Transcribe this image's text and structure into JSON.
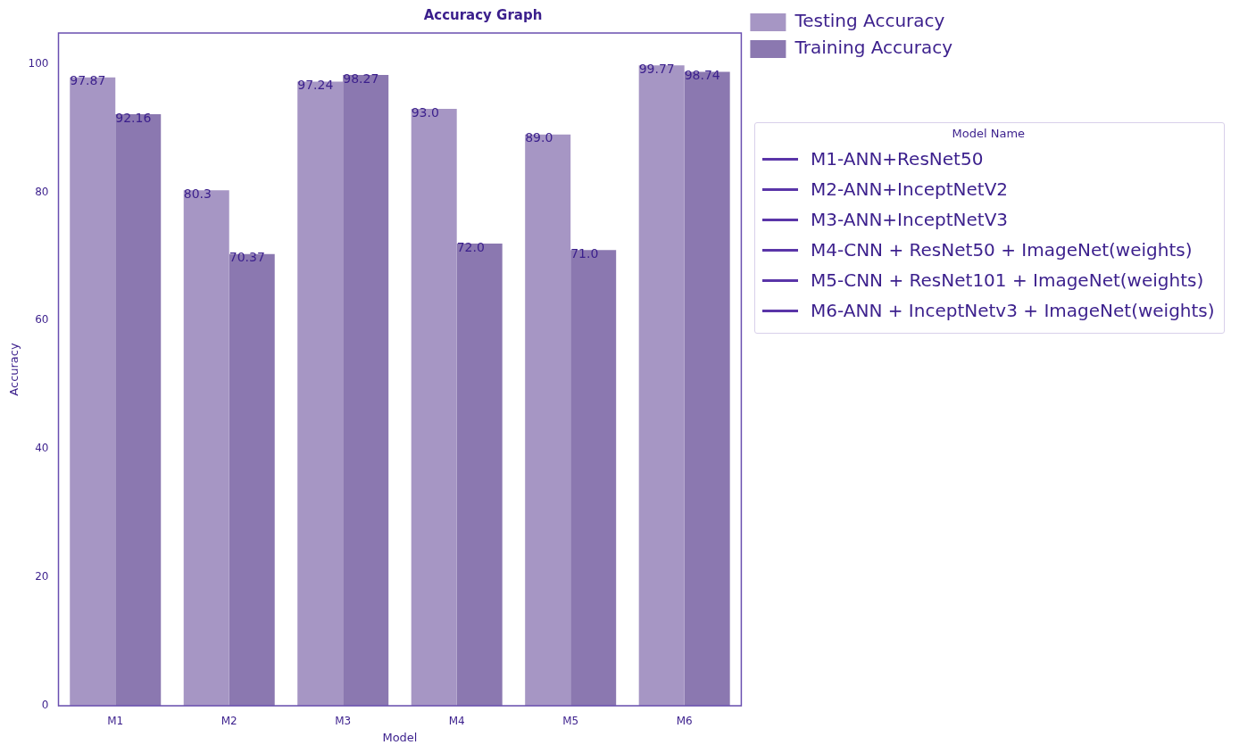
{
  "chart_data": {
    "type": "bar",
    "title": "Accuracy Graph",
    "xlabel": "Model",
    "ylabel": "Accuracy",
    "categories": [
      "M1",
      "M2",
      "M3",
      "M4",
      "M5",
      "M6"
    ],
    "series": [
      {
        "name": "Testing Accuracy",
        "color": "#a696c4",
        "values": [
          97.87,
          80.3,
          97.24,
          93,
          89,
          99.77
        ],
        "value_labels": [
          "97.87",
          "80.3",
          "97.24",
          "93.0",
          "89.0",
          "99.77"
        ]
      },
      {
        "name": "Training Accuracy",
        "color": "#8b78b0",
        "values": [
          92.16,
          70.37,
          98.27,
          72,
          71,
          98.74
        ],
        "value_labels": [
          "92.16",
          "70.37",
          "98.27",
          "72.0",
          "71.0",
          "98.74"
        ]
      }
    ],
    "ylim": [
      0,
      104.8
    ],
    "yticks": [
      0,
      20,
      40,
      60,
      80,
      100
    ],
    "grid": false,
    "legend": "top right",
    "legend_title": "Model Name",
    "annotations": [
      "M1-ANN+ResNet50",
      "M2-ANN+InceptNetV2",
      "M3-ANN+InceptNetV3",
      "M4-CNN + ResNet50 + ImageNet(weights)",
      "M5-CNN + ResNet101 + ImageNet(weights)",
      "M6-ANN + InceptNetv3 + ImageNet(weights)"
    ]
  }
}
